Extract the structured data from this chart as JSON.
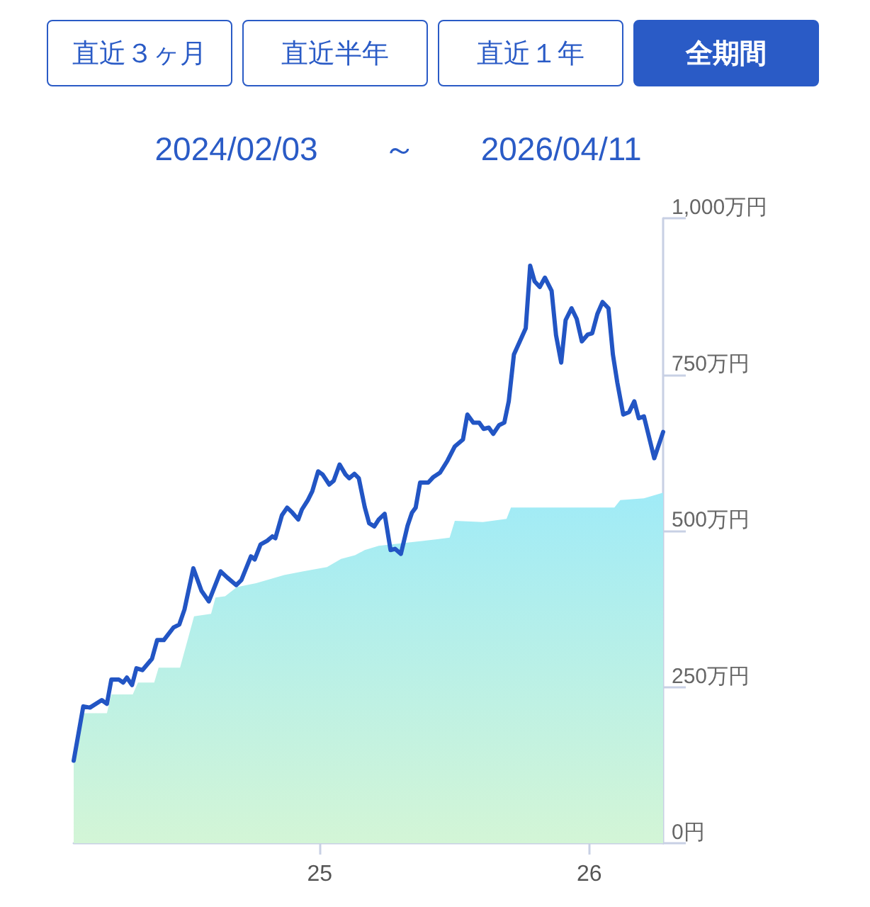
{
  "chart_data": {
    "type": "line",
    "title": "2024/02/03　　～　　2026/04/11",
    "annotations": [
      "直近３ヶ月",
      "直近半年",
      "直近１年",
      "全期間"
    ],
    "xlim": [
      "2024-02-03",
      "2026-04-11"
    ],
    "xticks": [
      {
        "value": "2025-01-01",
        "label": "25"
      },
      {
        "value": "2026-01-01",
        "label": "26"
      }
    ],
    "ylim": [
      0,
      1000
    ],
    "yticks": [
      {
        "value": 0,
        "label": "0円"
      },
      {
        "value": 250,
        "label": "250万円"
      },
      {
        "value": 500,
        "label": "500万円"
      },
      {
        "value": 750,
        "label": "750万円"
      },
      {
        "value": 1000,
        "label": "1,000万円"
      }
    ],
    "grid": false,
    "marker": "none",
    "line_style": "solid",
    "series": [
      {
        "type": "area",
        "color": "#a0ebf7",
        "x": [
          "2024-02-03",
          "2024-02-16",
          "2024-03-19",
          "2024-03-25",
          "2024-04-23",
          "2024-04-30",
          "2024-05-22",
          "2024-05-28",
          "2024-06-26",
          "2024-07-15",
          "2024-08-07",
          "2024-08-13",
          "2024-08-26",
          "2024-09-11",
          "2024-10-07",
          "2024-11-14",
          "2024-12-10",
          "2025-01-11",
          "2025-01-30",
          "2025-02-18",
          "2025-03-03",
          "2025-03-22",
          "2025-06-07",
          "2025-06-26",
          "2025-07-03",
          "2025-08-10",
          "2025-09-11",
          "2025-09-17",
          "2026-02-04",
          "2026-02-12",
          "2026-03-16",
          "2026-04-11"
        ],
        "values": [
          128,
          208,
          208,
          238,
          238,
          257,
          257,
          281,
          281,
          363,
          367,
          393,
          395,
          410,
          416,
          429,
          435,
          442,
          455,
          461,
          469,
          476,
          486,
          489,
          516,
          514,
          519,
          537,
          537,
          549,
          552,
          561
        ]
      },
      {
        "color": "#2255c4",
        "x": [
          "2024-02-03",
          "2024-02-16",
          "2024-02-25",
          "2024-03-12",
          "2024-03-19",
          "2024-03-25",
          "2024-04-04",
          "2024-04-10",
          "2024-04-15",
          "2024-04-22",
          "2024-04-28",
          "2024-05-06",
          "2024-05-19",
          "2024-05-26",
          "2024-06-04",
          "2024-06-17",
          "2024-06-25",
          "2024-07-02",
          "2024-07-14",
          "2024-07-25",
          "2024-08-04",
          "2024-08-20",
          "2024-08-29",
          "2024-09-10",
          "2024-09-17",
          "2024-09-30",
          "2024-10-05",
          "2024-10-13",
          "2024-10-22",
          "2024-10-29",
          "2024-11-02",
          "2024-11-11",
          "2024-11-18",
          "2024-11-25",
          "2024-12-03",
          "2024-12-08",
          "2024-12-16",
          "2024-12-22",
          "2024-12-30",
          "2025-01-05",
          "2025-01-14",
          "2025-01-20",
          "2025-01-28",
          "2025-02-05",
          "2025-02-10",
          "2025-02-17",
          "2025-02-23",
          "2025-03-03",
          "2025-03-09",
          "2025-03-16",
          "2025-03-22",
          "2025-03-30",
          "2025-04-07",
          "2025-04-13",
          "2025-04-21",
          "2025-04-30",
          "2025-05-06",
          "2025-05-11",
          "2025-05-17",
          "2025-05-28",
          "2025-06-04",
          "2025-06-13",
          "2025-06-23",
          "2025-07-03",
          "2025-07-14",
          "2025-07-20",
          "2025-07-28",
          "2025-08-05",
          "2025-08-11",
          "2025-08-18",
          "2025-08-24",
          "2025-09-01",
          "2025-09-08",
          "2025-09-14",
          "2025-09-21",
          "2025-09-29",
          "2025-10-07",
          "2025-10-13",
          "2025-10-19",
          "2025-10-26",
          "2025-11-02",
          "2025-11-11",
          "2025-11-17",
          "2025-11-24",
          "2025-11-30",
          "2025-12-08",
          "2025-12-15",
          "2025-12-22",
          "2025-12-30",
          "2026-01-05",
          "2026-01-12",
          "2026-01-19",
          "2026-01-27",
          "2026-02-02",
          "2026-02-08",
          "2026-02-16",
          "2026-02-24",
          "2026-03-03",
          "2026-03-09",
          "2026-03-16",
          "2026-03-30",
          "2026-04-11"
        ],
        "values": [
          132,
          219,
          217,
          229,
          223,
          262,
          262,
          257,
          265,
          253,
          280,
          277,
          295,
          325,
          325,
          345,
          350,
          374,
          440,
          404,
          387,
          435,
          425,
          413,
          421,
          459,
          454,
          478,
          484,
          491,
          488,
          525,
          537,
          529,
          518,
          534,
          549,
          563,
          595,
          590,
          574,
          580,
          606,
          590,
          584,
          591,
          584,
          538,
          512,
          507,
          518,
          527,
          469,
          471,
          463,
          508,
          529,
          537,
          577,
          577,
          586,
          593,
          612,
          635,
          646,
          686,
          673,
          673,
          663,
          665,
          655,
          669,
          673,
          707,
          782,
          803,
          824,
          924,
          899,
          890,
          905,
          884,
          813,
          769,
          837,
          856,
          839,
          803,
          814,
          816,
          847,
          866,
          856,
          782,
          737,
          686,
          690,
          707,
          680,
          683,
          616,
          658
        ]
      }
    ]
  }
}
